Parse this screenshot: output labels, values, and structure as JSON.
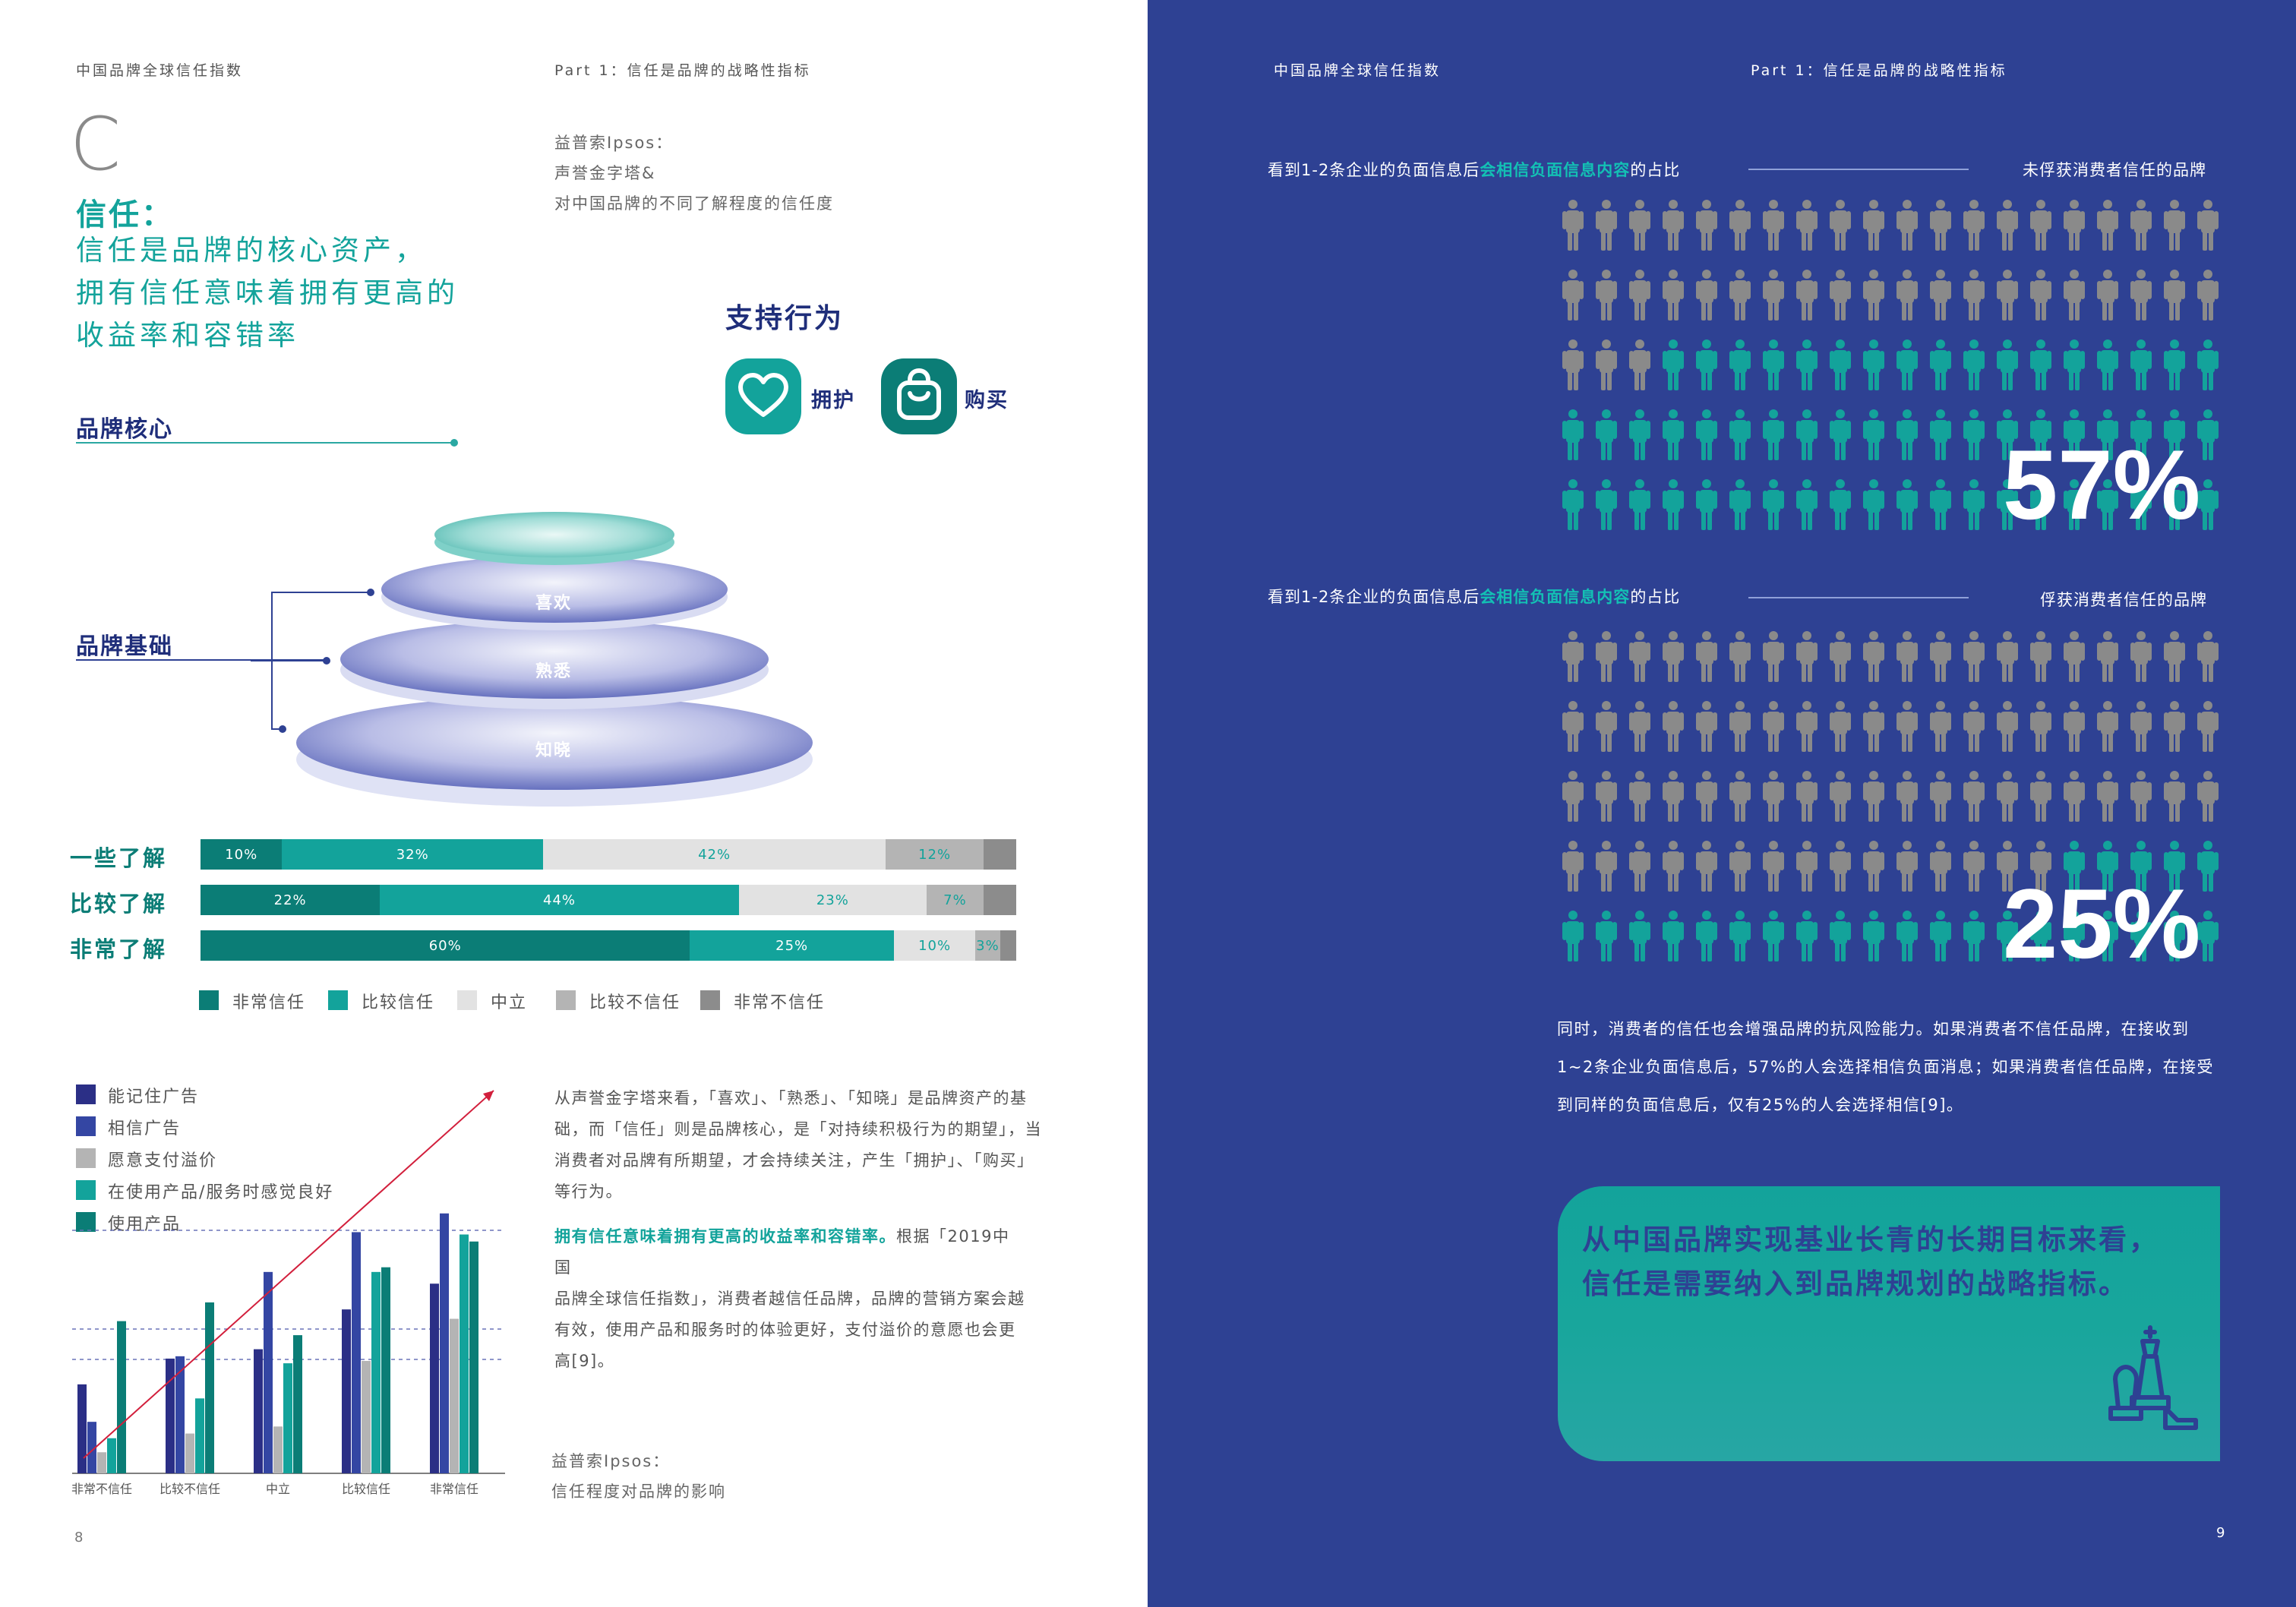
{
  "left": {
    "header_left": "中国品牌全球信任指数",
    "header_right": "Part 1：信任是品牌的战略性指标",
    "big_letter": "C",
    "trust_title": "信任：",
    "trust_lines": [
      "信任是品牌的核心资产，",
      "拥有信任意味着拥有更高的",
      "收益率和容错率"
    ],
    "source_top": [
      "益普索Ipsos：",
      "声誉金字塔&",
      "对中国品牌的不同了解程度的信任度"
    ],
    "support_title": "支持行为",
    "support_items": [
      {
        "label": "拥护",
        "icon": "heart-icon"
      },
      {
        "label": "购买",
        "icon": "shopping-bag-icon"
      }
    ],
    "brand_core": "品牌核心",
    "brand_base": "品牌基础",
    "pyramid_layers": [
      "喜欢",
      "熟悉",
      "知晓"
    ],
    "page_number": "8",
    "body_paragraph_1": [
      "从声誉金字塔来看，「喜欢」、「熟悉」、「知晓」是品牌资产的基",
      "础，而「信任」则是品牌核心，是「对持续积极行为的期望」，当",
      "消费者对品牌有所期望，才会持续关注，产生「拥护」、「购买」",
      "等行为。"
    ],
    "body_paragraph_2_bold": "拥有信任意味着拥有更高的收益率和容错率。",
    "body_paragraph_2_rest": [
      "根据「2019中国",
      "品牌全球信任指数」，消费者越信任品牌，品牌的营销方案会越",
      "有效，使用产品和服务时的体验更好，支付溢价的意愿也会更",
      "高[9]。"
    ],
    "source_bottom": [
      "益普索Ipsos：",
      "信任程度对品牌的影响"
    ]
  },
  "right": {
    "header_left": "中国品牌全球信任指数",
    "header_right": "Part 1：信任是品牌的战略性指标",
    "block1_title_pre": "看到1-2条企业的负面信息后",
    "block1_title_hl": "会相信负面信息内容",
    "block1_title_post": "的占比",
    "block1_tag": "未俘获消费者信任的品牌",
    "block1_pct": "57%",
    "block2_title_pre": "看到1-2条企业的负面信息后",
    "block2_title_hl": "会相信负面信息内容",
    "block2_title_post": "的占比",
    "block2_tag": "俘获消费者信任的品牌",
    "block2_pct": "25%",
    "paragraph": [
      "同时，消费者的信任也会增强品牌的抗风险能力。如果消费者不信任品牌，在接收到",
      "1~2条企业负面信息后，57%的人会选择相信负面消息；如果消费者信任品牌，在接受",
      "到同样的负面信息后，仅有25%的人会选择相信[9]。"
    ],
    "quote": [
      "从中国品牌实现基业长青的长期目标来看，",
      "信任是需要纳入到品牌规划的战略指标。"
    ],
    "page_number": "9",
    "icon": "chess-icon"
  },
  "colors": {
    "very_trust": "#0b7d76",
    "trust": "#13a39b",
    "neutral": "#e2e2e2",
    "distrust": "#b4b4b4",
    "very_distrust": "#8c8c8c",
    "navy": "#2e4193",
    "people_gray": "#8a8a8a",
    "people_teal": "#13a39b"
  },
  "chart_data": [
    {
      "type": "bar",
      "orientation": "horizontal-stacked",
      "categories": [
        "一些了解",
        "比较了解",
        "非常了解"
      ],
      "series": [
        {
          "name": "非常信任",
          "values": [
            10,
            22,
            60
          ]
        },
        {
          "name": "比较信任",
          "values": [
            32,
            44,
            25
          ]
        },
        {
          "name": "中立",
          "values": [
            42,
            23,
            10
          ]
        },
        {
          "name": "比较不信任",
          "values": [
            12,
            7,
            3
          ]
        },
        {
          "name": "非常不信任",
          "values": [
            4,
            4,
            2
          ]
        }
      ],
      "labels": [
        [
          "10%",
          "32%",
          "42%",
          "12%",
          ""
        ],
        [
          "22%",
          "44%",
          "23%",
          "7%",
          ""
        ],
        [
          "60%",
          "25%",
          "10%",
          "3%",
          ""
        ]
      ],
      "legend": [
        "非常信任",
        "比较信任",
        "中立",
        "比较不信任",
        "非常不信任"
      ]
    },
    {
      "type": "bar",
      "categories": [
        "非常不信任",
        "比较不信任",
        "中立",
        "比较信任",
        "非常信任"
      ],
      "series": [
        {
          "name": "能记住广告",
          "color": "#2b2f86",
          "values": [
            38,
            49,
            53,
            70,
            81
          ]
        },
        {
          "name": "相信广告",
          "color": "#3446a3",
          "values": [
            22,
            50,
            86,
            103,
            111
          ]
        },
        {
          "name": "愿意支付溢价",
          "color": "#b4b4b4",
          "values": [
            9,
            17,
            20,
            48,
            66
          ]
        },
        {
          "name": "在使用产品/服务时感觉良好",
          "color": "#13a39b",
          "values": [
            15,
            32,
            47,
            86,
            102
          ]
        },
        {
          "name": "使用产品",
          "color": "#0b7d76",
          "values": [
            65,
            73,
            59,
            88,
            99
          ]
        }
      ],
      "legend": [
        "能记住广告",
        "相信广告",
        "愿意支付溢价",
        "在使用产品/服务时感觉良好",
        "使用产品"
      ]
    },
    {
      "type": "table",
      "title": "看到1-2条企业的负面信息后会相信负面信息内容的占比",
      "rows": [
        {
          "label": "未俘获消费者信任的品牌",
          "value": 57
        },
        {
          "label": "俘获消费者信任的品牌",
          "value": 25
        }
      ]
    }
  ]
}
